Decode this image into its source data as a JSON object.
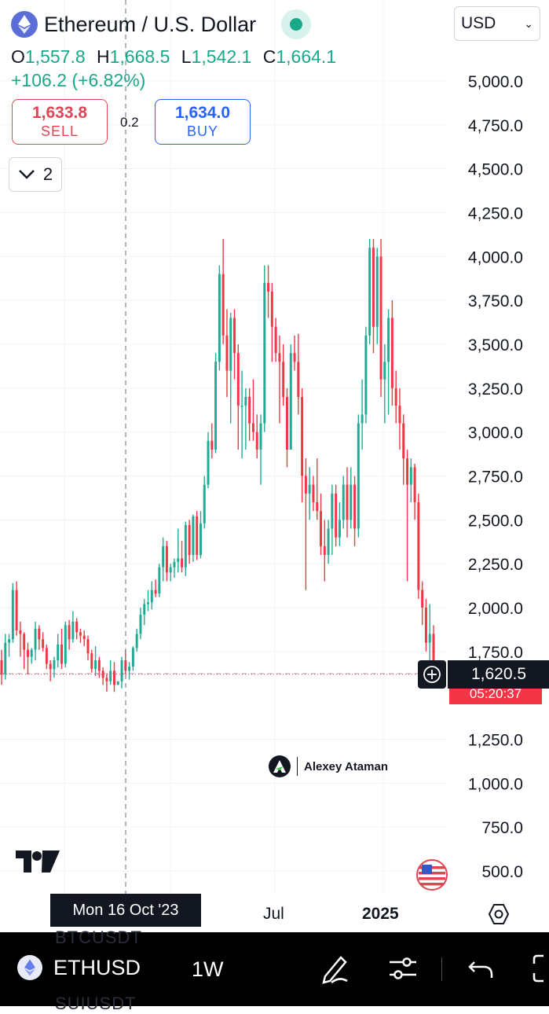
{
  "header": {
    "title": "Ethereum / U.S. Dollar",
    "currency": "USD",
    "ohlc": {
      "o_label": "O",
      "o": "1,557.8",
      "h_label": "H",
      "h": "1,668.5",
      "l_label": "L",
      "l": "1,542.1",
      "c_label": "C",
      "c": "1,664.1"
    },
    "change": "+106.2 (+6.82%)"
  },
  "trade": {
    "sell_price": "1,633.8",
    "sell_label": "SELL",
    "spread": "0.2",
    "buy_price": "1,634.0",
    "buy_label": "BUY"
  },
  "indicators_count": "2",
  "price_tag": {
    "price": "1,620.5",
    "countdown": "05:20:37"
  },
  "watermark": "Alexey Ataman",
  "time_axis": {
    "crosshair_date": "Mon 16 Oct '23",
    "labels": [
      "Jul",
      "2025"
    ]
  },
  "bottom_bar": {
    "symbol": "ETHUSD",
    "interval": "1W",
    "ghost_above": "BTCUSDT",
    "ghost_below": "SUIUSDT"
  },
  "colors": {
    "up": "#22ab94",
    "down": "#f23645",
    "accent": "#2962ff"
  },
  "chart_data": {
    "type": "candlestick",
    "symbol": "ETHUSD",
    "interval": "1W",
    "y_axis": {
      "min": 500,
      "max": 5000,
      "ticks": [
        "5,000.0",
        "4,750.0",
        "4,500.0",
        "4,250.0",
        "4,000.0",
        "3,750.0",
        "3,500.0",
        "3,250.0",
        "3,000.0",
        "2,750.0",
        "2,500.0",
        "2,250.0",
        "2,000.0",
        "1,750.0",
        "1,250.0",
        "1,000.0",
        "750.0",
        "500.0"
      ],
      "tick_values": [
        5000,
        4750,
        4500,
        4250,
        4000,
        3750,
        3500,
        3250,
        3000,
        2750,
        2500,
        2250,
        2000,
        1750,
        1250,
        1000,
        750,
        500
      ]
    },
    "last_price": 1620.5,
    "crosshair_date": "Mon 16 Oct '23",
    "candles": [
      [
        1700,
        1760,
        1560,
        1620
      ],
      [
        1620,
        1850,
        1590,
        1800
      ],
      [
        1800,
        1850,
        1720,
        1820
      ],
      [
        1820,
        2140,
        1800,
        2100
      ],
      [
        2100,
        2150,
        1840,
        1870
      ],
      [
        1870,
        1920,
        1720,
        1850
      ],
      [
        1850,
        1860,
        1650,
        1760
      ],
      [
        1760,
        1800,
        1620,
        1720
      ],
      [
        1720,
        1770,
        1680,
        1760
      ],
      [
        1760,
        1920,
        1700,
        1880
      ],
      [
        1880,
        1900,
        1760,
        1820
      ],
      [
        1820,
        1860,
        1750,
        1770
      ],
      [
        1770,
        1790,
        1650,
        1680
      ],
      [
        1680,
        1700,
        1580,
        1650
      ],
      [
        1650,
        1720,
        1600,
        1700
      ],
      [
        1700,
        1850,
        1660,
        1790
      ],
      [
        1790,
        1880,
        1650,
        1680
      ],
      [
        1680,
        1920,
        1660,
        1900
      ],
      [
        1900,
        1930,
        1760,
        1820
      ],
      [
        1820,
        1980,
        1800,
        1920
      ],
      [
        1920,
        1940,
        1820,
        1860
      ],
      [
        1860,
        1880,
        1800,
        1840
      ],
      [
        1840,
        1870,
        1780,
        1820
      ],
      [
        1820,
        1840,
        1700,
        1740
      ],
      [
        1740,
        1760,
        1630,
        1650
      ],
      [
        1650,
        1780,
        1610,
        1700
      ],
      [
        1700,
        1720,
        1600,
        1640
      ],
      [
        1640,
        1660,
        1560,
        1600
      ],
      [
        1600,
        1620,
        1520,
        1580
      ],
      [
        1580,
        1700,
        1560,
        1640
      ],
      [
        1640,
        1690,
        1520,
        1560
      ],
      [
        1560,
        1580,
        1560,
        1580
      ],
      [
        1580,
        1720,
        1540,
        1700
      ],
      [
        1700,
        1760,
        1620,
        1640
      ],
      [
        1640,
        1690,
        1590,
        1664
      ],
      [
        1664,
        1780,
        1640,
        1770
      ],
      [
        1770,
        1880,
        1750,
        1850
      ],
      [
        1850,
        2000,
        1820,
        1960
      ],
      [
        1960,
        2050,
        1900,
        2020
      ],
      [
        2020,
        2100,
        1980,
        2030
      ],
      [
        2030,
        2150,
        1990,
        2100
      ],
      [
        2100,
        2160,
        2060,
        2080
      ],
      [
        2080,
        2250,
        2060,
        2230
      ],
      [
        2230,
        2400,
        2150,
        2350
      ],
      [
        2350,
        2380,
        2150,
        2200
      ],
      [
        2200,
        2250,
        2150,
        2230
      ],
      [
        2230,
        2280,
        2170,
        2260
      ],
      [
        2260,
        2450,
        2200,
        2280
      ],
      [
        2280,
        2380,
        2200,
        2230
      ],
      [
        2230,
        2490,
        2180,
        2470
      ],
      [
        2470,
        2500,
        2250,
        2300
      ],
      [
        2300,
        2530,
        2260,
        2520
      ],
      [
        2520,
        2550,
        2270,
        2300
      ],
      [
        2300,
        2550,
        2280,
        2480
      ],
      [
        2480,
        2750,
        2450,
        2700
      ],
      [
        2700,
        3000,
        2680,
        2950
      ],
      [
        2950,
        3050,
        2850,
        2900
      ],
      [
        2900,
        3450,
        2880,
        3400
      ],
      [
        3400,
        3950,
        3350,
        3900
      ],
      [
        3900,
        4100,
        3500,
        3550
      ],
      [
        3550,
        3700,
        3200,
        3350
      ],
      [
        3350,
        3680,
        3050,
        3650
      ],
      [
        3650,
        3700,
        3300,
        3450
      ],
      [
        3450,
        3500,
        2900,
        3150
      ],
      [
        3150,
        3350,
        2850,
        3150
      ],
      [
        3150,
        3250,
        2900,
        3200
      ],
      [
        3200,
        3250,
        2950,
        3050
      ],
      [
        3050,
        3300,
        2950,
        3000
      ],
      [
        3000,
        3100,
        2850,
        2900
      ],
      [
        2900,
        3100,
        2700,
        3050
      ],
      [
        3050,
        3950,
        3000,
        3850
      ],
      [
        3850,
        3950,
        3650,
        3800
      ],
      [
        3800,
        3850,
        3400,
        3600
      ],
      [
        3600,
        3650,
        3400,
        3450
      ],
      [
        3450,
        3550,
        3050,
        3400
      ],
      [
        3400,
        3500,
        3150,
        3200
      ],
      [
        3200,
        3250,
        2800,
        2900
      ],
      [
        2900,
        3500,
        2900,
        3450
      ],
      [
        3450,
        3550,
        3350,
        3400
      ],
      [
        3400,
        3560,
        3100,
        3200
      ],
      [
        3200,
        3250,
        2600,
        2750
      ],
      [
        2750,
        2850,
        2100,
        2650
      ],
      [
        2650,
        2800,
        2500,
        2700
      ],
      [
        2700,
        2750,
        2550,
        2600
      ],
      [
        2600,
        2850,
        2500,
        2550
      ],
      [
        2550,
        2650,
        2300,
        2350
      ],
      [
        2350,
        2500,
        2150,
        2300
      ],
      [
        2300,
        2500,
        2250,
        2450
      ],
      [
        2450,
        2700,
        2300,
        2650
      ],
      [
        2650,
        2700,
        2350,
        2400
      ],
      [
        2400,
        2600,
        2350,
        2500
      ],
      [
        2500,
        2750,
        2450,
        2700
      ],
      [
        2700,
        2800,
        2400,
        2500
      ],
      [
        2500,
        2800,
        2450,
        2700
      ],
      [
        2700,
        2750,
        2350,
        2450
      ],
      [
        2450,
        3100,
        2400,
        3050
      ],
      [
        3050,
        3300,
        2900,
        3100
      ],
      [
        3100,
        3600,
        3050,
        3550
      ],
      [
        3550,
        4100,
        3500,
        4050
      ],
      [
        4050,
        4100,
        3450,
        3600
      ],
      [
        3600,
        4050,
        3500,
        4000
      ],
      [
        4000,
        4100,
        3200,
        3300
      ],
      [
        3300,
        3500,
        3050,
        3400
      ],
      [
        3400,
        3700,
        3100,
        3650
      ],
      [
        3650,
        3750,
        3150,
        3250
      ],
      [
        3250,
        3350,
        3050,
        3150
      ],
      [
        3150,
        3250,
        2900,
        3050
      ],
      [
        3050,
        3100,
        2700,
        2850
      ],
      [
        2850,
        2900,
        2150,
        2700
      ],
      [
        2700,
        2850,
        2600,
        2800
      ],
      [
        2800,
        2820,
        2500,
        2600
      ],
      [
        2600,
        2650,
        2050,
        2100
      ],
      [
        2100,
        2150,
        1900,
        2000
      ],
      [
        2000,
        2050,
        1750,
        1800
      ],
      [
        1800,
        2020,
        1700,
        1850
      ],
      [
        1850,
        1900,
        1600,
        1620
      ]
    ]
  }
}
